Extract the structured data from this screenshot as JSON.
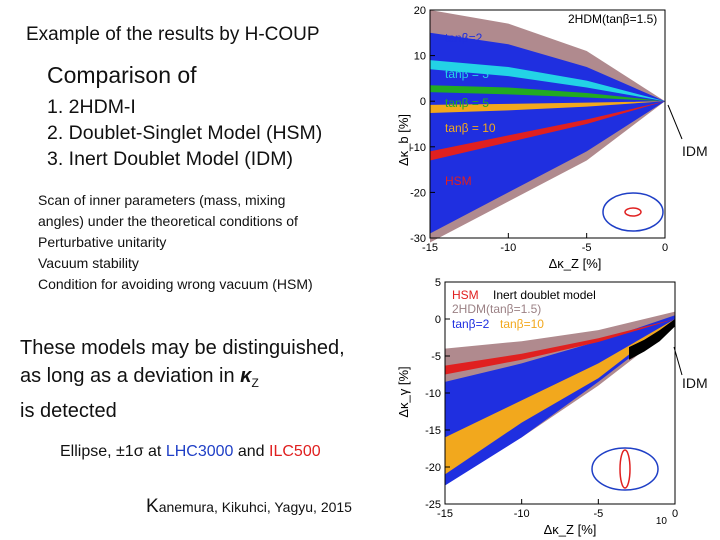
{
  "slide": {
    "title": "Example of the results by H-COUP",
    "comparison_heading": "Comparison of",
    "models": [
      "1. 2HDM-I",
      "2. Doublet-Singlet Model (HSM)",
      "3. Inert Doublet Model (IDM)"
    ],
    "scan_text": [
      "Scan of inner parameters (mass, mixing",
      "angles) under the theoretical conditions of",
      "Perturbative unitarity",
      "Vacuum stability",
      "Condition for avoiding wrong vacuum (HSM)"
    ],
    "conclusion": {
      "line1": "These models may be distinguished,",
      "line2_prefix": "as long as a deviation in ",
      "line2_kappa": "κ",
      "line2_sub": "Z",
      "line3": "is detected"
    },
    "ellipse_note": {
      "prefix": "Ellipse, ±1σ at ",
      "lhc": "LHC3000",
      "and": " and ",
      "ilc": "ILC500"
    },
    "authors": {
      "initial": "K",
      "rest": "anemura,  Kikuhci,   Yagyu,  2015"
    },
    "page_number": "10",
    "idm_label_top": "IDM",
    "idm_label_bottom": "IDM"
  },
  "chart_data": [
    {
      "type": "area",
      "xlabel": "Δκ_Z [%]",
      "ylabel": "Δκ_b [%]",
      "xlim": [
        -15,
        0
      ],
      "ylim": [
        -30,
        20
      ],
      "x_ticks": [
        "-15",
        "-10",
        "-5",
        "0"
      ],
      "y_ticks": [
        "20",
        "10",
        "0",
        "-10",
        "-20",
        "-30"
      ],
      "legend": [
        "2HDM(tanβ=1.5)",
        "tanβ=2",
        "tanβ = 3",
        "tanβ = 5",
        "tanβ = 10",
        "HSM"
      ],
      "series": [
        {
          "name": "2HDM(tanβ=1.5)",
          "color": "#b08a8e",
          "x": [
            0,
            -5,
            -10,
            -15
          ],
          "y_upper": [
            0,
            11,
            17,
            20
          ],
          "y_lower": [
            0,
            -13,
            -22,
            -31
          ]
        },
        {
          "name": "tanβ=2",
          "color": "#1f2fe0",
          "x": [
            0,
            -5,
            -10,
            -15
          ],
          "y_upper": [
            0,
            7.5,
            12.5,
            15
          ],
          "y_lower": [
            0,
            -11,
            -20,
            -29
          ]
        },
        {
          "name": "tanβ = 3",
          "color": "#23d3e6",
          "x": [
            0,
            -5,
            -10,
            -15
          ],
          "y_upper": [
            0,
            4.5,
            7.5,
            9
          ],
          "y_lower": [
            0,
            3,
            5.5,
            7
          ]
        },
        {
          "name": "tanβ = 5",
          "color": "#22aa22",
          "x": [
            0,
            -5,
            -10,
            -15
          ],
          "y_upper": [
            0,
            1.8,
            3,
            3.5
          ],
          "y_lower": [
            0,
            0.8,
            1.5,
            2
          ]
        },
        {
          "name": "tanβ = 10",
          "color": "#f2a81d",
          "x": [
            0,
            -5,
            -10,
            -15
          ],
          "y_upper": [
            0,
            -0.3,
            -0.6,
            -0.8
          ],
          "y_lower": [
            0,
            -1.2,
            -2,
            -2.6
          ]
        },
        {
          "name": "HSM",
          "color": "#e02020",
          "x": [
            0,
            -5,
            -10,
            -15
          ],
          "y_upper": [
            0,
            -4,
            -7.5,
            -11
          ],
          "y_lower": [
            0,
            -5,
            -9,
            -13
          ]
        }
      ],
      "annotations": [
        "IDM"
      ]
    },
    {
      "type": "area",
      "xlabel": "Δκ_Z [%]",
      "ylabel": "Δκ_γ [%]",
      "xlim": [
        -15,
        0
      ],
      "ylim": [
        -25,
        5
      ],
      "x_ticks": [
        "-15",
        "-10",
        "-5",
        "0"
      ],
      "y_ticks": [
        "5",
        "0",
        "-5",
        "-10",
        "-15",
        "-20",
        "-25"
      ],
      "legend": [
        "HSM",
        "Inert doublet model",
        "2HDM(tanβ=1.5)",
        "tanβ=2",
        "tanβ=10"
      ],
      "series": [
        {
          "name": "2HDM(tanβ=1.5)",
          "color": "#b08a8e",
          "x": [
            0,
            -5,
            -10,
            -15
          ],
          "y_upper": [
            1,
            -1.5,
            -3,
            -4
          ],
          "y_lower": [
            -1,
            -9,
            -16,
            -22
          ]
        },
        {
          "name": "tanβ=2",
          "color": "#1f2fe0",
          "x": [
            0,
            -5,
            -10,
            -15
          ],
          "y_upper": [
            0.5,
            -3,
            -6,
            -8.5
          ],
          "y_lower": [
            -0.5,
            -8.5,
            -16,
            -22.5
          ]
        },
        {
          "name": "HSM",
          "color": "#e02020",
          "x": [
            0,
            -5,
            -10,
            -15
          ],
          "y_upper": [
            0,
            -2.6,
            -4.7,
            -6.3
          ],
          "y_lower": [
            0,
            -3.1,
            -5.5,
            -7.5
          ]
        },
        {
          "name": "tanβ=10",
          "color": "#f2a81d",
          "x": [
            0,
            -5,
            -10,
            -15
          ],
          "y_upper": [
            0,
            -6,
            -11,
            -16
          ],
          "y_lower": [
            0,
            -8,
            -14,
            -21
          ]
        },
        {
          "name": "Inert doublet model",
          "color": "#000000",
          "x": [
            0,
            -1,
            -2,
            -3
          ],
          "y_upper": [
            0,
            -1.5,
            -2.8,
            -3.8
          ],
          "y_lower": [
            -1,
            -3,
            -4.4,
            -5.5
          ]
        }
      ],
      "annotations": [
        "IDM"
      ]
    }
  ]
}
